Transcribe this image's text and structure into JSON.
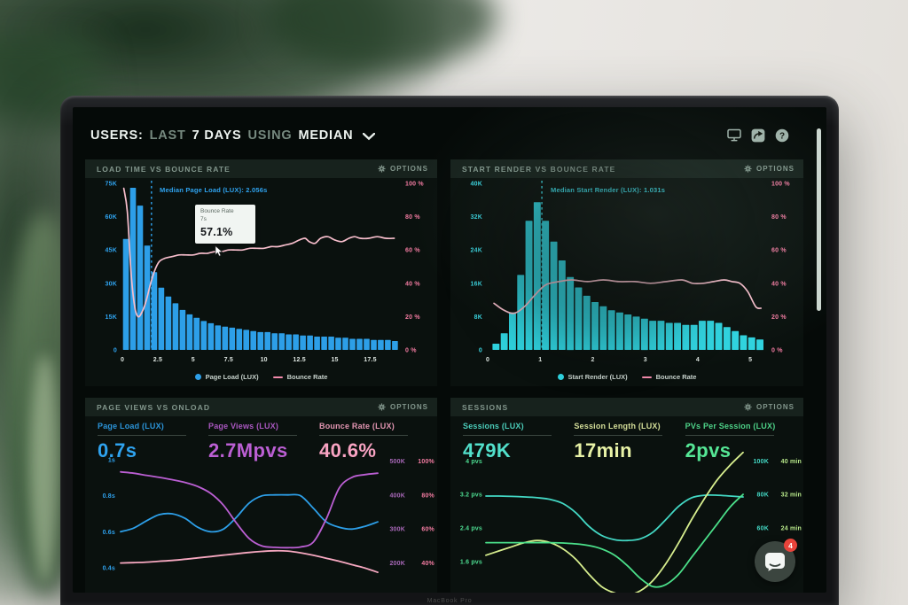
{
  "header": {
    "title_segments": [
      {
        "text": "USERS:",
        "emphasis": true
      },
      {
        "text": "LAST",
        "emphasis": false
      },
      {
        "text": "7 DAYS",
        "emphasis": true
      },
      {
        "text": "USING",
        "emphasis": false
      },
      {
        "text": "MEDIAN",
        "emphasis": true
      }
    ],
    "icons": [
      "display-icon",
      "share-icon",
      "help-icon"
    ]
  },
  "bezel_label": "MacBook Pro",
  "chat": {
    "badge": "4"
  },
  "panels": [
    {
      "title": "LOAD TIME VS BOUNCE RATE",
      "options_label": "OPTIONS",
      "annotation": "Median Page Load (LUX): 2.056s",
      "tooltip": {
        "title": "Bounce Rate",
        "sub": "7s",
        "value": "57.1%"
      },
      "legend": [
        {
          "label": "Page Load (LUX)",
          "color": "#2d9fe8"
        },
        {
          "label": "Bounce Rate",
          "color": "#f28aab"
        }
      ]
    },
    {
      "title": "START RENDER VS BOUNCE RATE",
      "options_label": "OPTIONS",
      "annotation": "Median Start Render (LUX): 1.031s",
      "legend": [
        {
          "label": "Start Render (LUX)",
          "color": "#2fd3df"
        },
        {
          "label": "Bounce Rate",
          "color": "#f28aab"
        }
      ]
    },
    {
      "title": "PAGE VIEWS VS ONLOAD",
      "options_label": "OPTIONS",
      "stats": [
        {
          "label": "Page Load (LUX)",
          "value": "0.7s",
          "color": "#2fa3ef"
        },
        {
          "label": "Page Views (LUX)",
          "value": "2.7Mpvs",
          "color": "#bb5fd3"
        },
        {
          "label": "Bounce Rate (LUX)",
          "value": "40.6%",
          "color": "#f8a3c2"
        }
      ]
    },
    {
      "title": "SESSIONS",
      "options_label": "OPTIONS",
      "stats": [
        {
          "label": "Sessions (LUX)",
          "value": "479K",
          "color": "#52e0cb"
        },
        {
          "label": "Session Length (LUX)",
          "value": "17min",
          "color": "#e8f2a6"
        },
        {
          "label": "PVs Per Session (LUX)",
          "value": "2pvs",
          "color": "#55e695"
        }
      ]
    }
  ],
  "chart_data": [
    {
      "type": "bar",
      "title": "LOAD TIME VS BOUNCE RATE",
      "x": {
        "min": 0,
        "max": 19.6,
        "unit": "s",
        "ticks": [
          {
            "label": "0",
            "value": 0
          },
          {
            "label": "2.5",
            "value": 2.5
          },
          {
            "label": "5",
            "value": 5
          },
          {
            "label": "7.5",
            "value": 7.5
          },
          {
            "label": "10",
            "value": 10
          },
          {
            "label": "12.5",
            "value": 12.5
          },
          {
            "label": "15",
            "value": 15
          },
          {
            "label": "17.5",
            "value": 17.5
          }
        ]
      },
      "left_axis": {
        "unit": "K pages",
        "min": 0,
        "max": 75,
        "color": "#2fa3ef",
        "ticks": [
          {
            "label": "75K",
            "value": 75
          },
          {
            "label": "60K",
            "value": 60
          },
          {
            "label": "45K",
            "value": 45
          },
          {
            "label": "30K",
            "value": 30
          },
          {
            "label": "15K",
            "value": 15
          },
          {
            "label": "0",
            "value": 0
          }
        ]
      },
      "right_axis": {
        "unit": "%",
        "min": 0,
        "max": 100,
        "color": "#f27ba1",
        "ticks": [
          {
            "label": "100 %",
            "value": 100
          },
          {
            "label": "80 %",
            "value": 80
          },
          {
            "label": "60 %",
            "value": 60
          },
          {
            "label": "40 %",
            "value": 40
          },
          {
            "label": "20 %",
            "value": 20
          },
          {
            "label": "0 %",
            "value": 0
          }
        ]
      },
      "bars": {
        "name": "Page Load (LUX)",
        "color": "#2d9fe8",
        "x0": 0,
        "step": 0.5,
        "values": [
          50,
          73,
          65,
          47,
          35,
          28,
          24,
          21,
          18,
          16,
          14.5,
          13,
          12,
          11,
          10.5,
          10,
          9.5,
          9,
          8.5,
          8,
          8,
          7.5,
          7.5,
          7,
          7,
          6.5,
          6.5,
          6,
          6,
          6,
          5.5,
          5.5,
          5,
          5,
          5,
          4.5,
          4.5,
          4.5,
          4
        ]
      },
      "line": {
        "name": "Bounce Rate",
        "color": "#f6bdcb",
        "axis": "right",
        "points": [
          [
            0.1,
            97
          ],
          [
            0.35,
            83
          ],
          [
            0.6,
            48
          ],
          [
            0.85,
            27
          ],
          [
            1.1,
            20
          ],
          [
            1.4,
            23
          ],
          [
            1.7,
            30
          ],
          [
            2.0,
            40
          ],
          [
            2.3,
            48
          ],
          [
            2.6,
            53
          ],
          [
            3.0,
            55
          ],
          [
            3.5,
            56
          ],
          [
            4,
            57
          ],
          [
            4.5,
            57
          ],
          [
            5,
            57
          ],
          [
            5.5,
            58
          ],
          [
            6,
            58
          ],
          [
            6.5,
            59
          ],
          [
            7,
            59
          ],
          [
            7.5,
            60
          ],
          [
            8,
            60
          ],
          [
            8.5,
            60
          ],
          [
            9,
            61
          ],
          [
            9.5,
            61
          ],
          [
            10,
            61
          ],
          [
            10.5,
            62
          ],
          [
            11,
            62
          ],
          [
            11.5,
            63
          ],
          [
            12,
            64
          ],
          [
            12.5,
            66
          ],
          [
            12.9,
            67
          ],
          [
            13.2,
            65
          ],
          [
            13.6,
            64
          ],
          [
            14,
            67
          ],
          [
            14.5,
            68
          ],
          [
            15,
            66
          ],
          [
            15.5,
            65
          ],
          [
            16,
            67
          ],
          [
            16.4,
            68
          ],
          [
            16.8,
            67
          ],
          [
            17.4,
            67
          ],
          [
            18,
            68
          ],
          [
            18.6,
            67
          ],
          [
            19.2,
            67
          ]
        ]
      },
      "median": {
        "value": 2.056,
        "label": "Median Page Load (LUX): 2.056s",
        "color": "#2fa3ef"
      },
      "hover_readout": {
        "x": "7s",
        "series": "Bounce Rate",
        "value": 57.1
      }
    },
    {
      "type": "bar",
      "title": "START RENDER VS BOUNCE RATE",
      "x": {
        "min": 0,
        "max": 5.3,
        "unit": "s",
        "ticks": [
          {
            "label": "0",
            "value": 0
          },
          {
            "label": "1",
            "value": 1
          },
          {
            "label": "2",
            "value": 2
          },
          {
            "label": "3",
            "value": 3
          },
          {
            "label": "4",
            "value": 4
          },
          {
            "label": "5",
            "value": 5
          }
        ]
      },
      "left_axis": {
        "unit": "K pages",
        "min": 0,
        "max": 40,
        "color": "#3bd5e0",
        "ticks": [
          {
            "label": "40K",
            "value": 40
          },
          {
            "label": "32K",
            "value": 32
          },
          {
            "label": "24K",
            "value": 24
          },
          {
            "label": "16K",
            "value": 16
          },
          {
            "label": "8K",
            "value": 8
          },
          {
            "label": "0",
            "value": 0
          }
        ]
      },
      "right_axis": {
        "unit": "%",
        "min": 0,
        "max": 100,
        "color": "#f27ba1",
        "ticks": [
          {
            "label": "100 %",
            "value": 100
          },
          {
            "label": "80 %",
            "value": 80
          },
          {
            "label": "60 %",
            "value": 60
          },
          {
            "label": "40 %",
            "value": 40
          },
          {
            "label": "20 %",
            "value": 20
          },
          {
            "label": "0 %",
            "value": 0
          }
        ]
      },
      "bars": {
        "name": "Start Render (LUX)",
        "color": "#2fd3df",
        "x0": 0.08,
        "step": 0.157,
        "values": [
          1.5,
          4,
          9,
          18,
          31,
          35.5,
          31,
          26,
          21.5,
          17.5,
          15,
          13,
          11.5,
          10.5,
          9.5,
          9,
          8.5,
          8,
          7.5,
          7,
          7,
          6.5,
          6.5,
          6,
          6,
          7,
          7,
          6.5,
          5.5,
          4.5,
          3.5,
          3,
          2.5
        ]
      },
      "line": {
        "name": "Bounce Rate",
        "color": "#f6bdcb",
        "axis": "right",
        "points": [
          [
            0.12,
            28
          ],
          [
            0.3,
            24
          ],
          [
            0.5,
            22
          ],
          [
            0.7,
            26
          ],
          [
            0.9,
            33
          ],
          [
            1.1,
            39
          ],
          [
            1.35,
            41
          ],
          [
            1.6,
            42
          ],
          [
            1.9,
            41
          ],
          [
            2.2,
            42
          ],
          [
            2.5,
            41
          ],
          [
            2.8,
            41
          ],
          [
            3.1,
            40
          ],
          [
            3.4,
            41
          ],
          [
            3.7,
            42
          ],
          [
            3.9,
            40
          ],
          [
            4.1,
            40
          ],
          [
            4.3,
            41
          ],
          [
            4.5,
            42
          ],
          [
            4.65,
            41
          ],
          [
            4.8,
            40
          ],
          [
            4.95,
            35
          ],
          [
            5.1,
            26
          ],
          [
            5.2,
            25
          ]
        ]
      },
      "median": {
        "value": 1.031,
        "label": "Median Start Render (LUX): 1.031s",
        "color": "#3bd5e0"
      }
    },
    {
      "type": "line",
      "title": "PAGE VIEWS VS ONLOAD",
      "left_axis": {
        "unit": "s",
        "min": 0.36,
        "max": 1.06,
        "color": "#2fa3ef",
        "ticks": [
          {
            "label": "1s",
            "value": 1
          },
          {
            "label": "0.8s",
            "value": 0.8
          },
          {
            "label": "0.6s",
            "value": 0.6
          },
          {
            "label": "0.4s",
            "value": 0.4
          }
        ]
      },
      "right_axes": [
        {
          "unit": "K",
          "min": 165,
          "max": 535,
          "color": "#a868b8",
          "ticks": [
            {
              "label": "500K",
              "value": 500
            },
            {
              "label": "400K",
              "value": 400
            },
            {
              "label": "300K",
              "value": 300
            },
            {
              "label": "200K",
              "value": 200
            }
          ]
        },
        {
          "unit": "%",
          "min": 33,
          "max": 107,
          "color": "#f27ba1",
          "ticks": [
            {
              "label": "100%",
              "value": 100
            },
            {
              "label": "80%",
              "value": 80
            },
            {
              "label": "60%",
              "value": 60
            },
            {
              "label": "40%",
              "value": 40
            }
          ]
        }
      ],
      "series": [
        {
          "name": "Page Load (LUX)",
          "axis": "left",
          "color": "#2d9fe8",
          "values": [
            0.6,
            0.62,
            0.66,
            0.695,
            0.7,
            0.675,
            0.625,
            0.6,
            0.615,
            0.68,
            0.76,
            0.8,
            0.805,
            0.805,
            0.8,
            0.73,
            0.655,
            0.625,
            0.615,
            0.63,
            0.655
          ]
        },
        {
          "name": "Page Views (LUX)",
          "axis": "right0",
          "color": "#bb5fd3",
          "values": [
            468,
            464,
            458,
            452,
            445,
            437,
            425,
            405,
            370,
            318,
            272,
            250,
            246,
            245,
            247,
            262,
            330,
            420,
            452,
            460,
            464
          ]
        },
        {
          "name": "Bounce Rate (LUX)",
          "axis": "right1",
          "color": "#f6a8c0",
          "values": [
            40,
            40.2,
            40.5,
            41,
            41.5,
            42.2,
            43,
            43.8,
            44.6,
            45.4,
            46.2,
            46.8,
            47.2,
            47,
            46,
            44.5,
            42.8,
            41,
            39,
            37,
            34.5
          ]
        }
      ]
    },
    {
      "type": "line",
      "title": "SESSIONS",
      "left_axis": {
        "unit": "pvs",
        "min": 1.28,
        "max": 4.28,
        "color": "#4cd98f",
        "ticks": [
          {
            "label": "4 pvs",
            "value": 4
          },
          {
            "label": "3.2 pvs",
            "value": 3.2
          },
          {
            "label": "2.4 pvs",
            "value": 2.4
          },
          {
            "label": "1.6 pvs",
            "value": 1.6
          }
        ]
      },
      "right_axes": [
        {
          "unit": "K",
          "min": 32,
          "max": 107,
          "color": "#43d8c4",
          "ticks": [
            {
              "label": "100K",
              "value": 100
            },
            {
              "label": "80K",
              "value": 80
            },
            {
              "label": "60K",
              "value": 60
            },
            {
              "label": "40K",
              "value": 40
            }
          ]
        },
        {
          "unit": "min",
          "min": 12.8,
          "max": 42.8,
          "color": "#b8e88a",
          "ticks": [
            {
              "label": "40 min",
              "value": 40
            },
            {
              "label": "32 min",
              "value": 32
            },
            {
              "label": "24 min",
              "value": 24
            }
          ]
        }
      ],
      "series": [
        {
          "name": "Sessions (LUX)",
          "axis": "right0",
          "color": "#43d8c4",
          "values": [
            79,
            79,
            78.8,
            78.5,
            78,
            77,
            74.5,
            69,
            61,
            55.5,
            53,
            52.5,
            53.5,
            57.5,
            65,
            73,
            78,
            79.5,
            79.5,
            79,
            78.5
          ]
        },
        {
          "name": "Session Length (LUX)",
          "axis": "right1",
          "color": "#d7ee8e",
          "values": [
            17.5,
            18.5,
            19.5,
            20.5,
            21,
            20.5,
            19,
            16.5,
            13,
            10,
            8.5,
            8,
            9,
            11.5,
            15.5,
            20.5,
            26,
            31,
            35.5,
            39,
            42
          ]
        },
        {
          "name": "PVs Per Session (LUX)",
          "axis": "left",
          "color": "#4be08a",
          "values": [
            2.05,
            2.05,
            2.05,
            2.05,
            2.05,
            2.05,
            2.04,
            2.02,
            1.98,
            1.9,
            1.75,
            1.5,
            1.2,
            1.0,
            1.05,
            1.3,
            1.7,
            2.1,
            2.5,
            2.9,
            3.2
          ]
        }
      ]
    }
  ]
}
